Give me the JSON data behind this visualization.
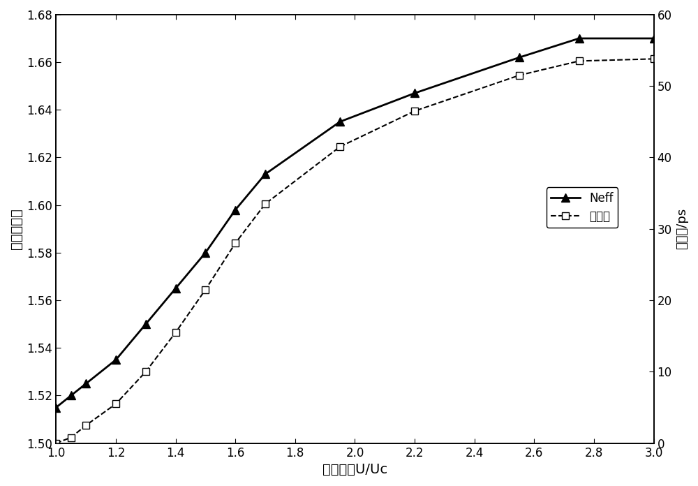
{
  "neff_x": [
    1.0,
    1.05,
    1.1,
    1.2,
    1.3,
    1.4,
    1.5,
    1.6,
    1.7,
    1.95,
    2.2,
    2.55,
    2.75,
    3.0
  ],
  "neff_y": [
    1.515,
    1.52,
    1.525,
    1.535,
    1.55,
    1.565,
    1.58,
    1.598,
    1.613,
    1.635,
    1.647,
    1.662,
    1.67,
    1.67
  ],
  "delay_x": [
    1.0,
    1.05,
    1.1,
    1.2,
    1.3,
    1.4,
    1.5,
    1.6,
    1.7,
    1.95,
    2.2,
    2.55,
    2.75,
    3.0
  ],
  "delay_y": [
    0.0,
    0.8,
    2.5,
    5.5,
    10.0,
    15.5,
    21.5,
    28.0,
    33.5,
    41.5,
    46.5,
    51.5,
    53.5,
    53.8
  ],
  "xlabel": "相对电压U/Uᴄ",
  "ylabel_left": "有效折射率",
  "ylabel_right": "时延量/ps",
  "xlim": [
    1.0,
    3.0
  ],
  "ylim_left": [
    1.5,
    1.68
  ],
  "ylim_right": [
    0,
    60
  ],
  "xticks": [
    1.0,
    1.2,
    1.4,
    1.6,
    1.8,
    2.0,
    2.2,
    2.4,
    2.6,
    2.8,
    3.0
  ],
  "yticks_left": [
    1.5,
    1.52,
    1.54,
    1.56,
    1.58,
    1.6,
    1.62,
    1.64,
    1.66,
    1.68
  ],
  "yticks_right": [
    0,
    10,
    20,
    30,
    40,
    50,
    60
  ],
  "legend_neff": "Neff",
  "legend_delay": "时延量",
  "figsize": [
    10.0,
    6.96
  ],
  "dpi": 100
}
